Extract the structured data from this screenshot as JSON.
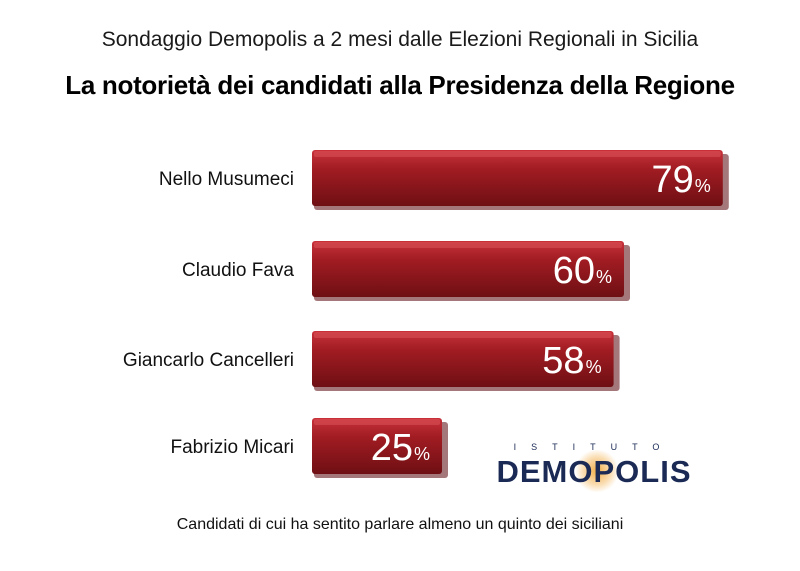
{
  "header": {
    "subtitle": "Sondaggio Demopolis a 2 mesi dalle Elezioni Regionali in Sicilia",
    "title": "La notorietà dei candidati alla Presidenza della Regione"
  },
  "footer": {
    "note": "Candidati di cui ha sentito parlare almeno un quinto dei siciliani"
  },
  "logo": {
    "top_text": "ISTITUTO",
    "main_text": "DEMOPOLIS"
  },
  "colors": {
    "bar": "#a01c22",
    "bar_dark": "#6e0f14",
    "bar_light": "#c8313a",
    "logo": "#1a2a55"
  },
  "chart_data": {
    "type": "bar",
    "orientation": "horizontal",
    "categories": [
      "Nello Musumeci",
      "Claudio Fava",
      "Giancarlo Cancelleri",
      "Fabrizio Micari"
    ],
    "values": [
      79,
      60,
      58,
      25
    ],
    "value_suffix": "%",
    "title": "La notorietà dei candidati alla Presidenza della Regione",
    "xlim": [
      0,
      100
    ],
    "grid": false,
    "legend": "none"
  }
}
